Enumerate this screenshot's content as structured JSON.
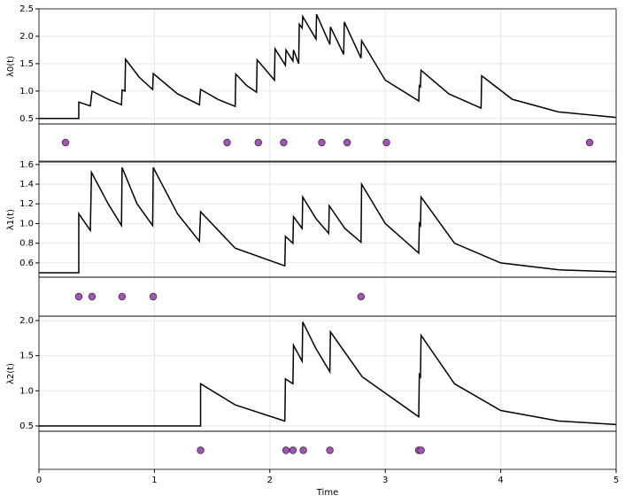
{
  "chart_data": [
    {
      "type": "line",
      "ylabel": "λ0(t)",
      "color": "#000000",
      "event_color": "#a652bd",
      "grid": true,
      "xlim": [
        0,
        5
      ],
      "ylim": [
        0.4,
        2.5
      ],
      "yticks": [
        {
          "value": 0.5,
          "label": "0.5"
        },
        {
          "value": 1.0,
          "label": "1.0"
        },
        {
          "value": 1.5,
          "label": "1.5"
        },
        {
          "value": 2.0,
          "label": "2.0"
        },
        {
          "value": 2.5,
          "label": "2.5"
        }
      ],
      "x": [
        0,
        0.345,
        0.345,
        0.445,
        0.46,
        0.6,
        0.715,
        0.72,
        0.745,
        0.75,
        0.87,
        0.985,
        0.99,
        1.2,
        1.39,
        1.4,
        1.55,
        1.7,
        1.705,
        1.8,
        1.885,
        1.89,
        2.04,
        2.045,
        2.135,
        2.14,
        2.2,
        2.205,
        2.25,
        2.255,
        2.28,
        2.285,
        2.4,
        2.405,
        2.52,
        2.525,
        2.64,
        2.645,
        2.79,
        2.795,
        3.0,
        3.29,
        3.295,
        3.305,
        3.31,
        3.55,
        3.83,
        3.835,
        4.1,
        4.5,
        5
      ],
      "values": [
        0.5,
        0.5,
        0.8,
        0.73,
        1.0,
        0.85,
        0.75,
        1.02,
        1.0,
        1.58,
        1.25,
        1.03,
        1.32,
        0.95,
        0.75,
        1.03,
        0.85,
        0.72,
        1.31,
        1.1,
        0.98,
        1.57,
        1.2,
        1.77,
        1.47,
        1.75,
        1.55,
        1.75,
        1.5,
        2.22,
        2.15,
        2.36,
        1.95,
        2.4,
        1.85,
        2.17,
        1.67,
        2.26,
        1.6,
        1.92,
        1.2,
        0.82,
        1.1,
        1.08,
        1.38,
        0.95,
        0.69,
        1.28,
        0.85,
        0.62,
        0.52
      ],
      "events": [
        0.23,
        1.63,
        1.9,
        2.12,
        2.45,
        2.67,
        3.01,
        4.77
      ]
    },
    {
      "type": "line",
      "ylabel": "λ1(t)",
      "color": "#000000",
      "event_color": "#a652bd",
      "grid": true,
      "xlim": [
        0,
        5
      ],
      "ylim": [
        0.455,
        1.625
      ],
      "yticks": [
        0.6,
        0.8,
        {
          "value": 1.0,
          "label": "1.0"
        },
        1.2,
        1.4,
        1.6
      ],
      "x": [
        0,
        0.345,
        0.345,
        0.445,
        0.455,
        0.6,
        0.715,
        0.72,
        0.85,
        0.985,
        0.99,
        1.2,
        1.39,
        1.4,
        1.7,
        2.13,
        2.135,
        2.2,
        2.205,
        2.28,
        2.285,
        2.4,
        2.51,
        2.515,
        2.65,
        2.79,
        2.795,
        3.0,
        3.29,
        3.295,
        3.305,
        3.31,
        3.6,
        4.0,
        4.5,
        5
      ],
      "values": [
        0.5,
        0.5,
        1.1,
        0.93,
        1.52,
        1.2,
        0.98,
        1.57,
        1.2,
        0.98,
        1.57,
        1.1,
        0.82,
        1.12,
        0.75,
        0.57,
        0.87,
        0.8,
        1.07,
        0.95,
        1.27,
        1.05,
        0.9,
        1.18,
        0.95,
        0.81,
        1.4,
        1.0,
        0.7,
        1.0,
        0.98,
        1.27,
        0.8,
        0.6,
        0.53,
        0.51
      ],
      "events": [
        0.345,
        0.46,
        0.72,
        0.99,
        2.79
      ]
    },
    {
      "type": "line",
      "ylabel": "λ2(t)",
      "color": "#000000",
      "event_color": "#a652bd",
      "grid": true,
      "xlim": [
        0,
        5
      ],
      "ylim": [
        0.424,
        2.063
      ],
      "yticks": [
        0.5,
        {
          "value": 1.0,
          "label": "1.0"
        },
        1.5,
        {
          "value": 2.0,
          "label": "2.0"
        }
      ],
      "x": [
        0,
        1.4,
        1.4,
        1.7,
        2.13,
        2.135,
        2.2,
        2.205,
        2.28,
        2.285,
        2.4,
        2.52,
        2.525,
        2.8,
        3.29,
        3.295,
        3.305,
        3.31,
        3.6,
        4.0,
        4.5,
        5
      ],
      "values": [
        0.5,
        0.5,
        1.1,
        0.8,
        0.57,
        1.17,
        1.1,
        1.65,
        1.42,
        1.98,
        1.6,
        1.27,
        1.84,
        1.2,
        0.63,
        1.23,
        1.2,
        1.79,
        1.1,
        0.72,
        0.57,
        0.52
      ],
      "events": [
        1.4,
        2.14,
        2.2,
        2.29,
        2.52,
        3.29,
        3.31
      ],
      "xticks": [
        0,
        1,
        2,
        3,
        4,
        5
      ],
      "xlabel": "Time"
    }
  ]
}
